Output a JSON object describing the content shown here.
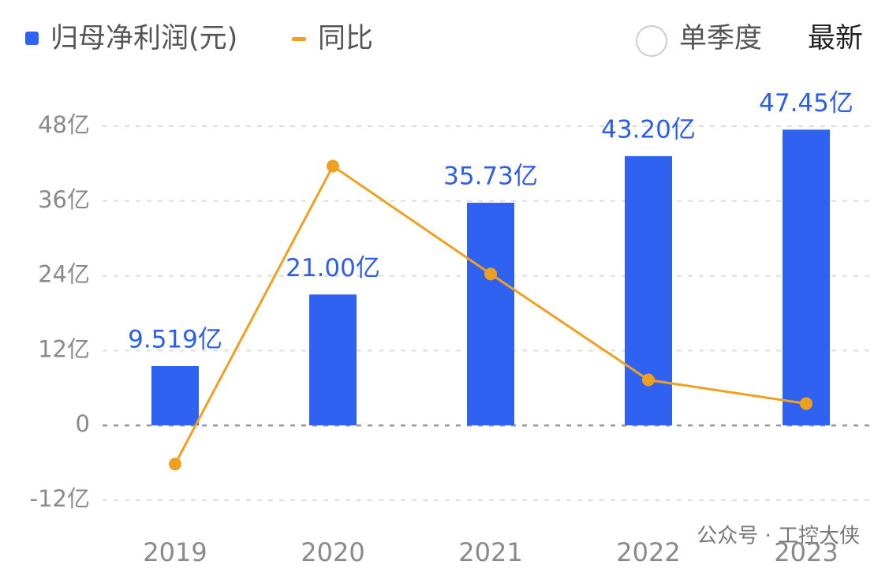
{
  "chart_data": {
    "type": "bar",
    "categories": [
      "2019",
      "2020",
      "2021",
      "2022",
      "2023"
    ],
    "series": [
      {
        "name": "归母净利润(元)",
        "type": "bar",
        "color": "#2f62f0",
        "values": [
          9.519,
          21.0,
          35.73,
          43.2,
          47.45
        ],
        "value_labels": [
          "9.519亿",
          "21.00亿",
          "35.73亿",
          "43.20亿",
          "47.45亿"
        ]
      },
      {
        "name": "同比",
        "type": "line",
        "color": "#f0a020",
        "values": [
          -6.2,
          41.6,
          24.3,
          7.3,
          3.5
        ]
      }
    ],
    "ylim": [
      -12,
      48
    ],
    "yticks": [
      {
        "value": -12,
        "label": "-12亿"
      },
      0,
      {
        "value": 12,
        "label": "12亿"
      },
      {
        "value": 24,
        "label": "24亿"
      },
      {
        "value": 36,
        "label": "36亿"
      },
      {
        "value": 48,
        "label": "48亿"
      }
    ],
    "grid": true
  },
  "controls": {
    "quarterly": "单季度",
    "latest": "最新"
  },
  "watermark": "公众号 · 工控大侠"
}
